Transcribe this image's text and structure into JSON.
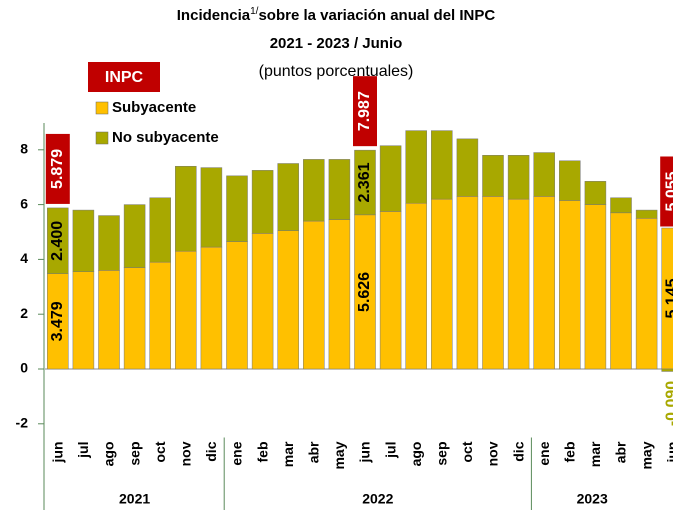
{
  "chart_data": {
    "type": "stacked_bar",
    "title": "Incidencia",
    "title_superscript": "1/",
    "title_rest": "sobre la variación anual del INPC",
    "subtitle": "2021 - 2023 / Junio",
    "unit_note": "(puntos porcentuales)",
    "categories": [
      "jun",
      "jul",
      "ago",
      "sep",
      "oct",
      "nov",
      "dic",
      "ene",
      "feb",
      "mar",
      "abr",
      "may",
      "jun",
      "jul",
      "ago",
      "sep",
      "oct",
      "nov",
      "dic",
      "ene",
      "feb",
      "mar",
      "abr",
      "may",
      "jun"
    ],
    "groups": [
      {
        "label": "2021",
        "count": 7
      },
      {
        "label": "2022",
        "count": 12
      },
      {
        "label": "2023",
        "count": 6
      }
    ],
    "series": [
      {
        "name": "Subyacente",
        "color": "#FFC000",
        "values": [
          3.479,
          3.55,
          3.6,
          3.7,
          3.9,
          4.3,
          4.45,
          4.65,
          4.95,
          5.05,
          5.4,
          5.45,
          5.626,
          5.75,
          6.05,
          6.2,
          6.3,
          6.3,
          6.2,
          6.3,
          6.15,
          6.0,
          5.7,
          5.5,
          5.145
        ],
        "value_labels": [
          "3.479",
          null,
          null,
          null,
          null,
          null,
          null,
          null,
          null,
          null,
          null,
          null,
          "5.626",
          null,
          null,
          null,
          null,
          null,
          null,
          null,
          null,
          null,
          null,
          null,
          "5.145"
        ]
      },
      {
        "name": "No subyacente",
        "color": "#A8A800",
        "values": [
          2.4,
          2.25,
          2.0,
          2.3,
          2.35,
          3.1,
          2.9,
          2.4,
          2.3,
          2.45,
          2.25,
          2.2,
          2.361,
          2.4,
          2.65,
          2.5,
          2.1,
          1.5,
          1.6,
          1.6,
          1.45,
          0.85,
          0.55,
          0.3,
          -0.09
        ],
        "value_labels": [
          "2.400",
          null,
          null,
          null,
          null,
          null,
          null,
          null,
          null,
          null,
          null,
          null,
          "2.361",
          null,
          null,
          null,
          null,
          null,
          null,
          null,
          null,
          null,
          null,
          null,
          "-0.090"
        ]
      }
    ],
    "totals": {
      "name": "INPC",
      "color": "#C00000",
      "values": [
        5.879,
        null,
        null,
        null,
        null,
        null,
        null,
        null,
        null,
        null,
        null,
        null,
        7.987,
        null,
        null,
        null,
        null,
        null,
        null,
        null,
        null,
        null,
        null,
        null,
        5.055
      ],
      "value_labels": [
        "5.879",
        null,
        null,
        null,
        null,
        null,
        null,
        null,
        null,
        null,
        null,
        null,
        "7.987",
        null,
        null,
        null,
        null,
        null,
        null,
        null,
        null,
        null,
        null,
        null,
        "5.055"
      ]
    },
    "ylim": [
      -2.5,
      9
    ],
    "yticks": [
      -2,
      0,
      2,
      4,
      6,
      8
    ]
  }
}
